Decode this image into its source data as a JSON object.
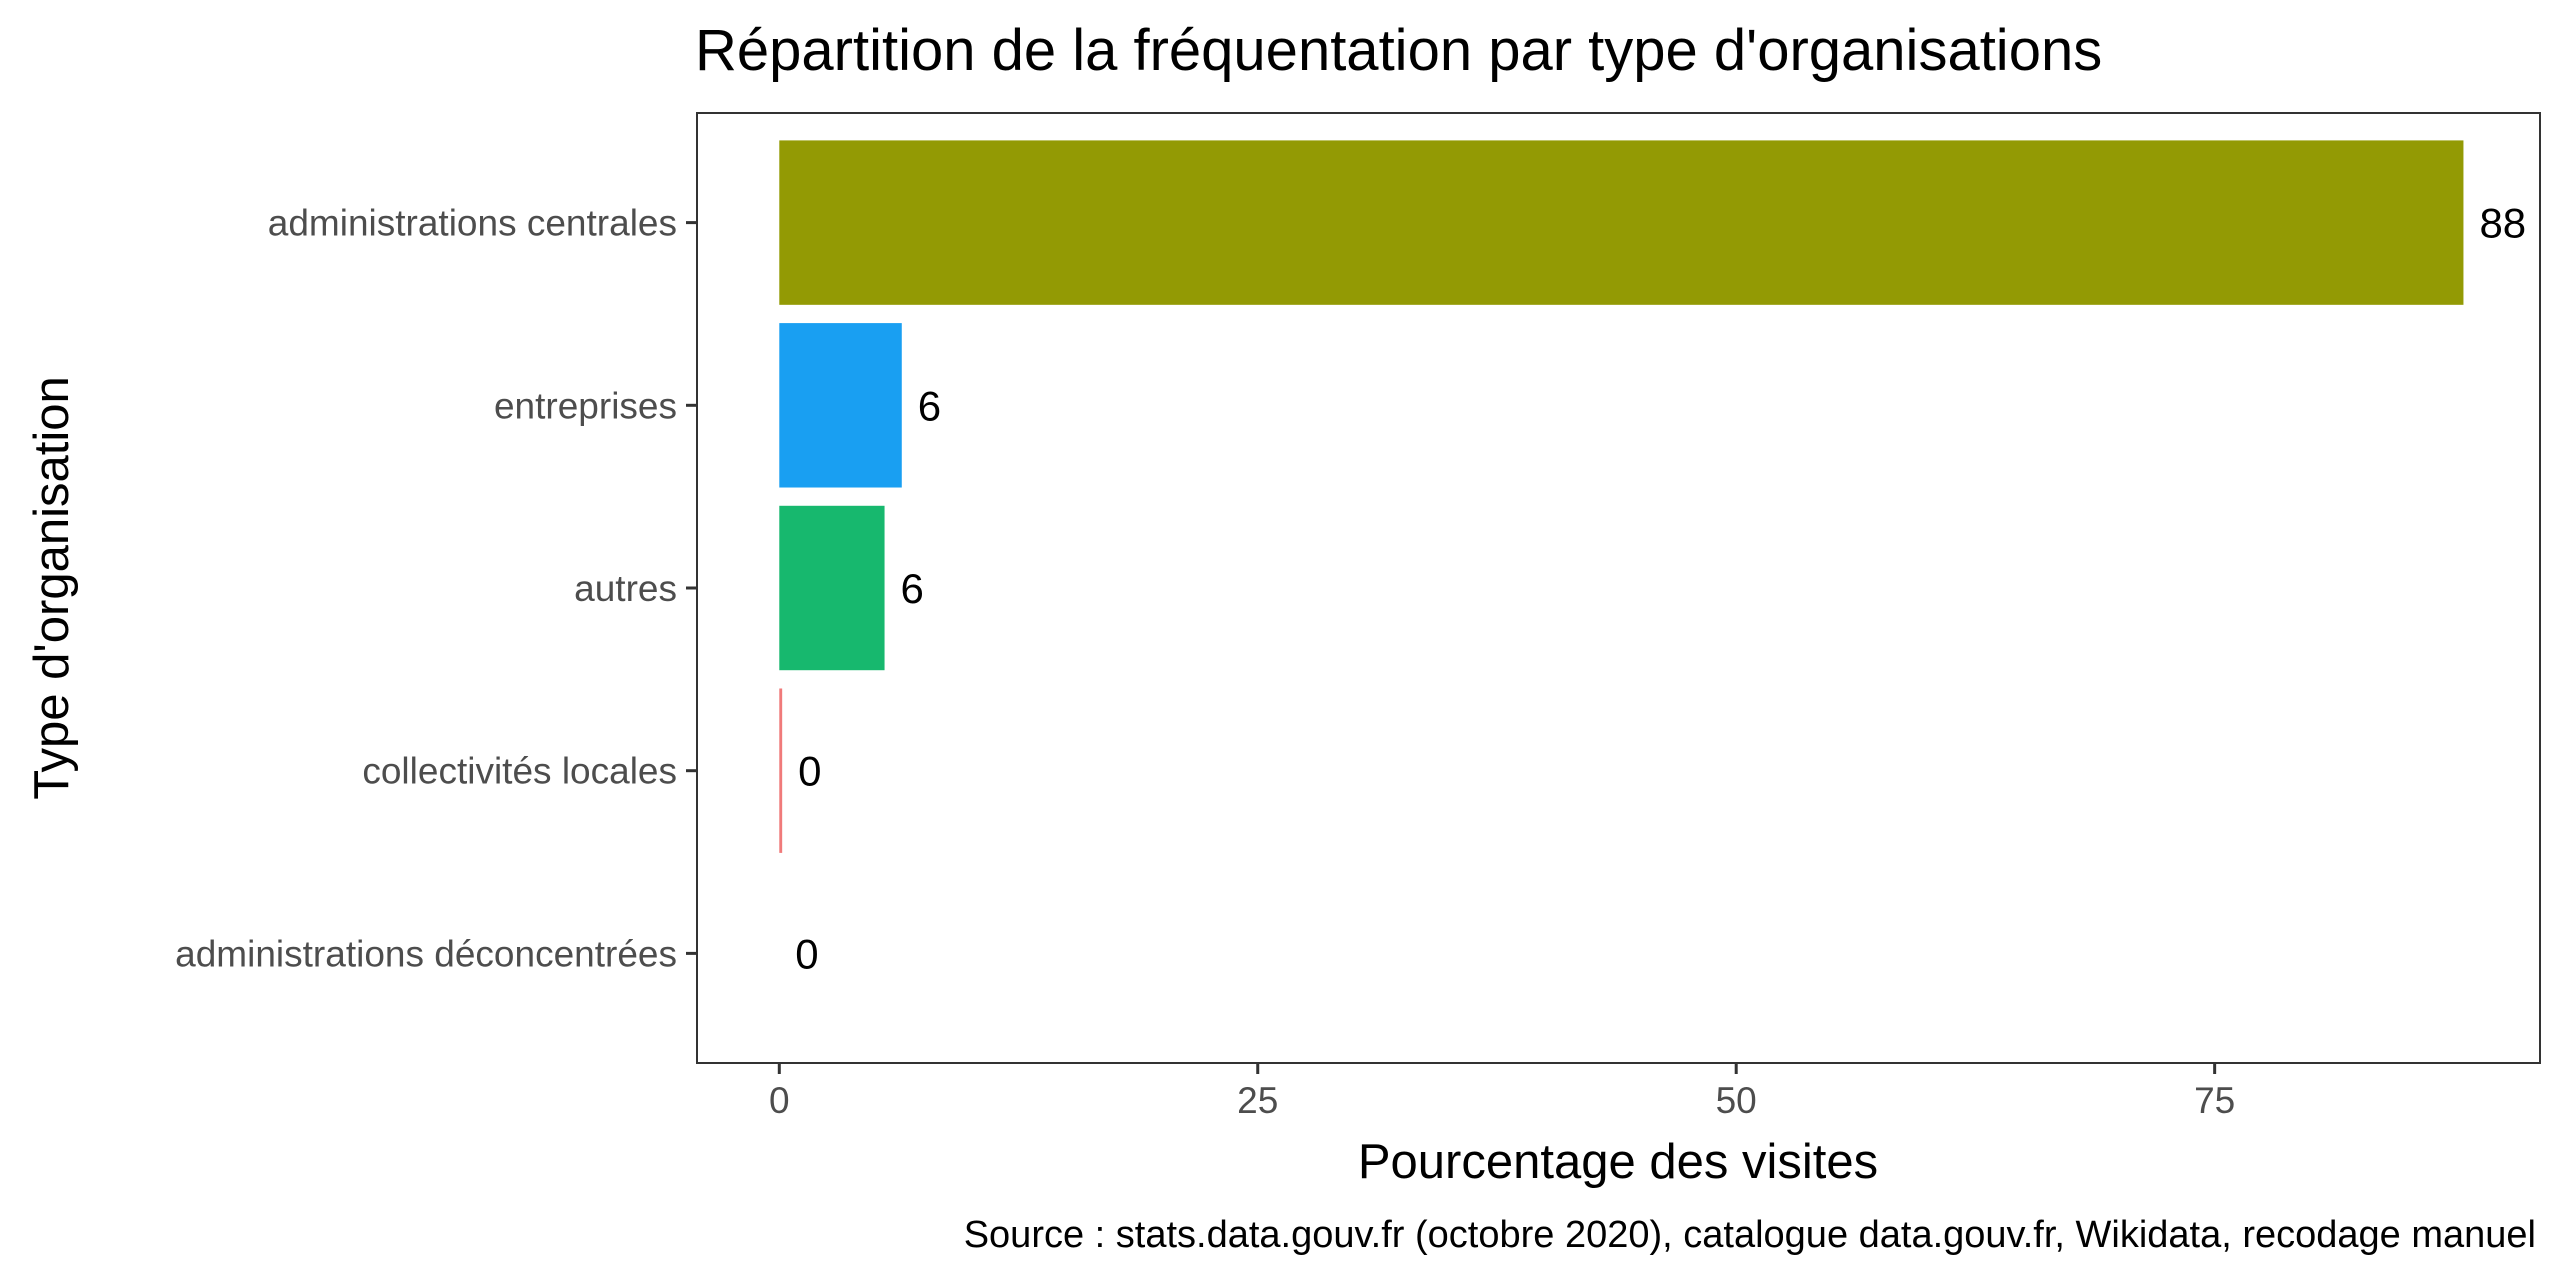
{
  "chart_data": {
    "type": "bar",
    "orientation": "horizontal",
    "title": "Répartition de la fréquentation par type d'organisations",
    "xlabel": "Pourcentage des visites",
    "ylabel": "Type d'organisation",
    "caption": "Source : stats.data.gouv.fr (octobre 2020), catalogue data.gouv.fr, Wikidata, recodage manuel",
    "categories": [
      "administrations centrales",
      "entreprises",
      "autres",
      "collectivités locales",
      "administrations déconcentrées"
    ],
    "values": [
      88,
      6.4,
      5.5,
      0.15,
      0
    ],
    "labels": [
      "88",
      "6",
      "6",
      "0",
      "0"
    ],
    "colors": [
      "#939a04",
      "#199ff2",
      "#17b86e",
      "#f07a7a",
      "#c27cf0"
    ],
    "xlim": [
      -4.3,
      92
    ],
    "xticks": [
      0,
      25,
      50,
      75
    ],
    "grid": false,
    "legend": "none"
  }
}
